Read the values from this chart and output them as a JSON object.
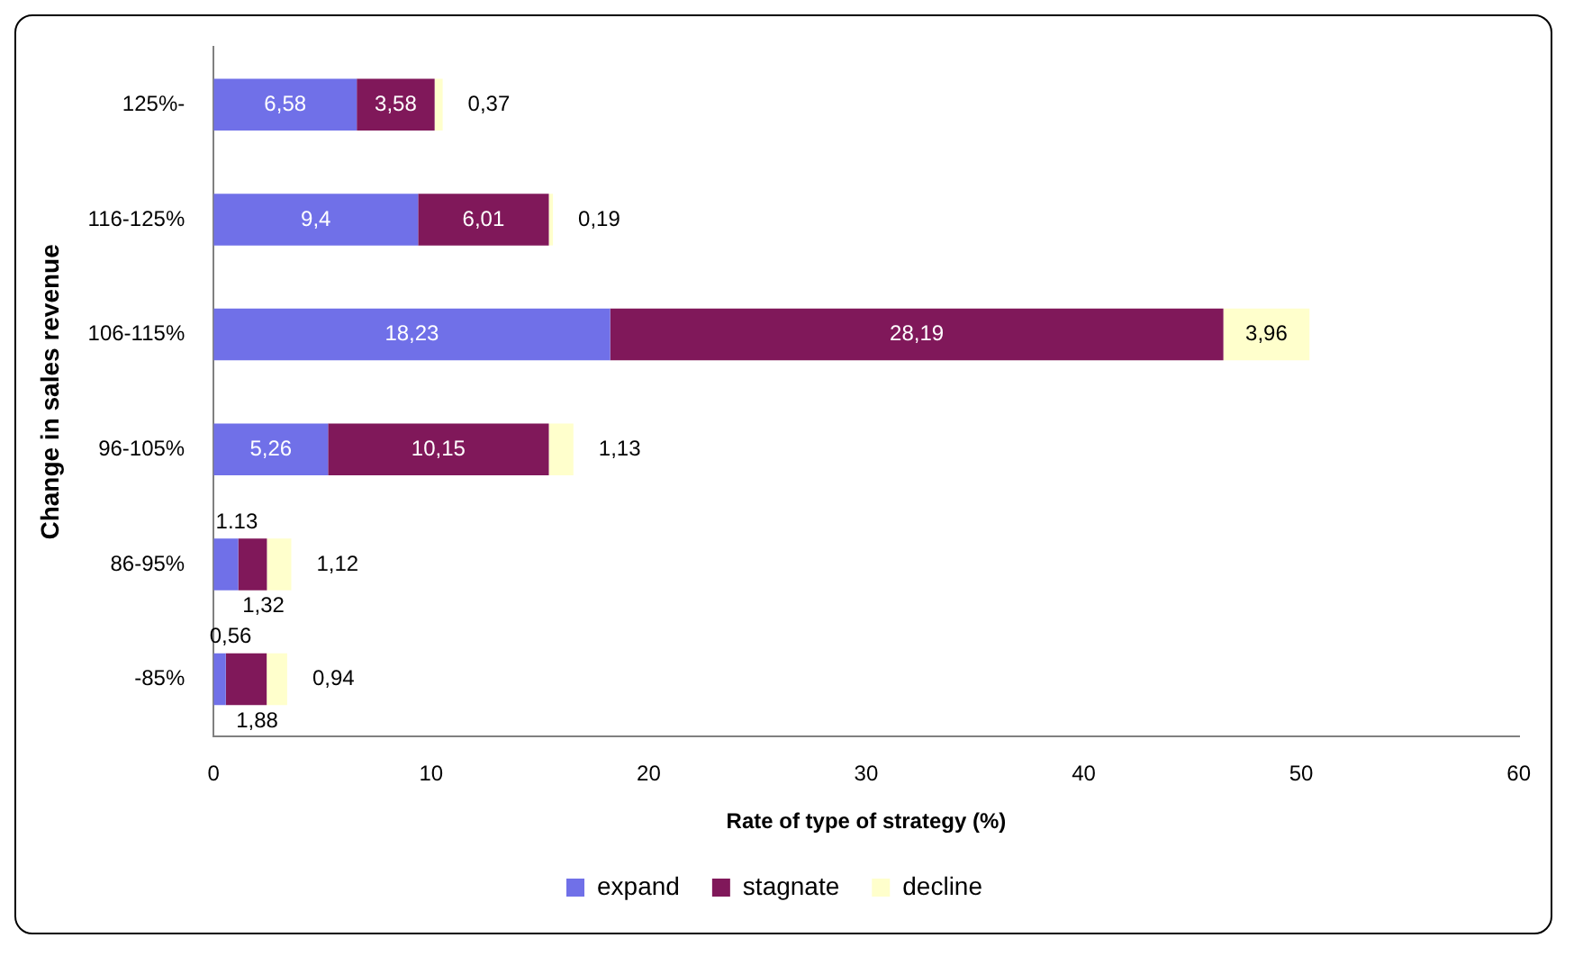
{
  "chart_data": {
    "type": "bar",
    "orientation": "horizontal",
    "stacked": true,
    "xlabel": "Rate of type of strategy (%)",
    "ylabel": "Change in sales revenue",
    "categories": [
      "125%-",
      "116-125%",
      "106-115%",
      "96-105%",
      "86-95%",
      "-85%"
    ],
    "series": [
      {
        "name": "expand",
        "color": "#7070e8",
        "values": [
          6.58,
          9.4,
          18.23,
          5.26,
          1.13,
          0.56
        ],
        "value_labels": [
          "6,58",
          "9,4",
          "18,23",
          "5,26",
          "1.13",
          "0,56"
        ]
      },
      {
        "name": "stagnate",
        "color": "#80185a",
        "values": [
          3.58,
          6.01,
          28.19,
          10.15,
          1.32,
          1.88
        ],
        "value_labels": [
          "3,58",
          "6,01",
          "28,19",
          "10,15",
          "1,32",
          "1,88"
        ]
      },
      {
        "name": "decline",
        "color": "#ffffcc",
        "values": [
          0.37,
          0.19,
          3.96,
          1.13,
          1.12,
          0.94
        ],
        "value_labels": [
          "0,37",
          "0,19",
          "3,96",
          "1,13",
          "1,12",
          "0,94"
        ]
      }
    ],
    "xlim": [
      0,
      60
    ],
    "xticks": [
      0,
      10,
      20,
      30,
      40,
      50,
      60
    ],
    "grid": false,
    "legend": "bottom"
  }
}
